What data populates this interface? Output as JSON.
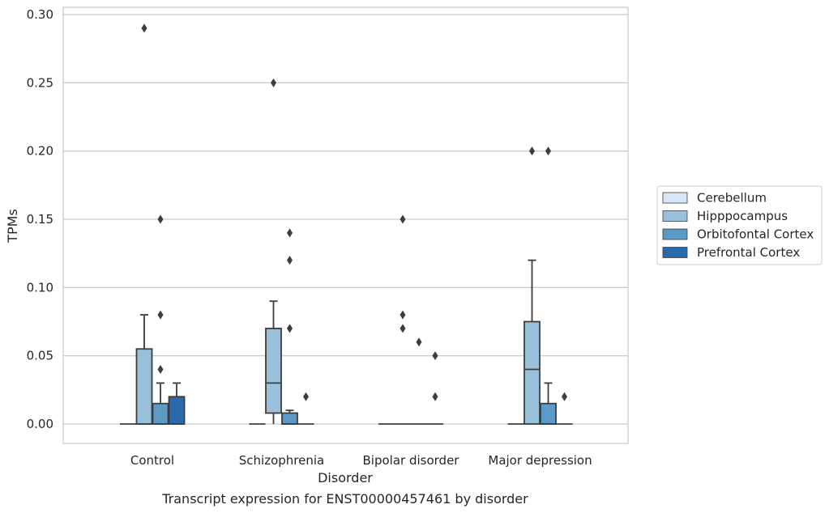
{
  "caption": "Transcript expression for ENST00000457461 by disorder",
  "chart_data": {
    "type": "box",
    "xlabel": "Disorder",
    "ylabel": "TPMs",
    "ylim": [
      -0.015,
      0.305
    ],
    "yticks": [
      0.0,
      0.05,
      0.1,
      0.15,
      0.2,
      0.25,
      0.3
    ],
    "ytick_labels": [
      "0.00",
      "0.05",
      "0.10",
      "0.15",
      "0.20",
      "0.25",
      "0.30"
    ],
    "grid": "horizontal",
    "legend_position": "right",
    "categories": [
      "Control",
      "Schizophrenia",
      "Bipolar disorder",
      "Major depression"
    ],
    "series": [
      {
        "name": "Cerebellum",
        "color": "#d6e6f4",
        "boxes": [
          {
            "q1": 0,
            "median": 0,
            "q3": 0,
            "whisker_low": 0,
            "whisker_high": 0,
            "outliers": []
          },
          {
            "q1": 0,
            "median": 0,
            "q3": 0,
            "whisker_low": 0,
            "whisker_high": 0,
            "outliers": []
          },
          {
            "q1": 0,
            "median": 0,
            "q3": 0,
            "whisker_low": 0,
            "whisker_high": 0,
            "outliers": []
          },
          {
            "q1": 0,
            "median": 0,
            "q3": 0,
            "whisker_low": 0,
            "whisker_high": 0,
            "outliers": []
          }
        ]
      },
      {
        "name": "Hipppocampus",
        "color": "#9ac1dc",
        "boxes": [
          {
            "q1": 0,
            "median": 0,
            "q3": 0.055,
            "whisker_low": 0,
            "whisker_high": 0.08,
            "outliers": [
              0.29
            ]
          },
          {
            "q1": 0.008,
            "median": 0.03,
            "q3": 0.07,
            "whisker_low": 0,
            "whisker_high": 0.09,
            "outliers": [
              0.25
            ]
          },
          {
            "q1": 0,
            "median": 0,
            "q3": 0,
            "whisker_low": 0,
            "whisker_high": 0,
            "outliers": [
              0.15,
              0.08,
              0.07
            ]
          },
          {
            "q1": 0,
            "median": 0.04,
            "q3": 0.075,
            "whisker_low": 0,
            "whisker_high": 0.12,
            "outliers": [
              0.2
            ]
          }
        ]
      },
      {
        "name": "Orbitofontal Cortex",
        "color": "#5b9ac6",
        "boxes": [
          {
            "q1": 0,
            "median": 0,
            "q3": 0.015,
            "whisker_low": 0,
            "whisker_high": 0.03,
            "outliers": [
              0.15,
              0.08,
              0.04
            ]
          },
          {
            "q1": 0,
            "median": 0,
            "q3": 0.008,
            "whisker_low": 0,
            "whisker_high": 0.01,
            "outliers": [
              0.14,
              0.12,
              0.07
            ]
          },
          {
            "q1": 0,
            "median": 0,
            "q3": 0,
            "whisker_low": 0,
            "whisker_high": 0,
            "outliers": [
              0.06
            ]
          },
          {
            "q1": 0,
            "median": 0,
            "q3": 0.015,
            "whisker_low": 0,
            "whisker_high": 0.03,
            "outliers": [
              0.2
            ]
          }
        ]
      },
      {
        "name": "Prefrontal Cortex",
        "color": "#2a6aaa",
        "boxes": [
          {
            "q1": 0,
            "median": 0,
            "q3": 0.02,
            "whisker_low": 0,
            "whisker_high": 0.03,
            "outliers": []
          },
          {
            "q1": 0,
            "median": 0,
            "q3": 0,
            "whisker_low": 0,
            "whisker_high": 0,
            "outliers": [
              0.02
            ]
          },
          {
            "q1": 0,
            "median": 0,
            "q3": 0,
            "whisker_low": 0,
            "whisker_high": 0,
            "outliers": [
              0.05,
              0.02
            ]
          },
          {
            "q1": 0,
            "median": 0,
            "q3": 0,
            "whisker_low": 0,
            "whisker_high": 0,
            "outliers": [
              0.02
            ]
          }
        ]
      }
    ]
  }
}
